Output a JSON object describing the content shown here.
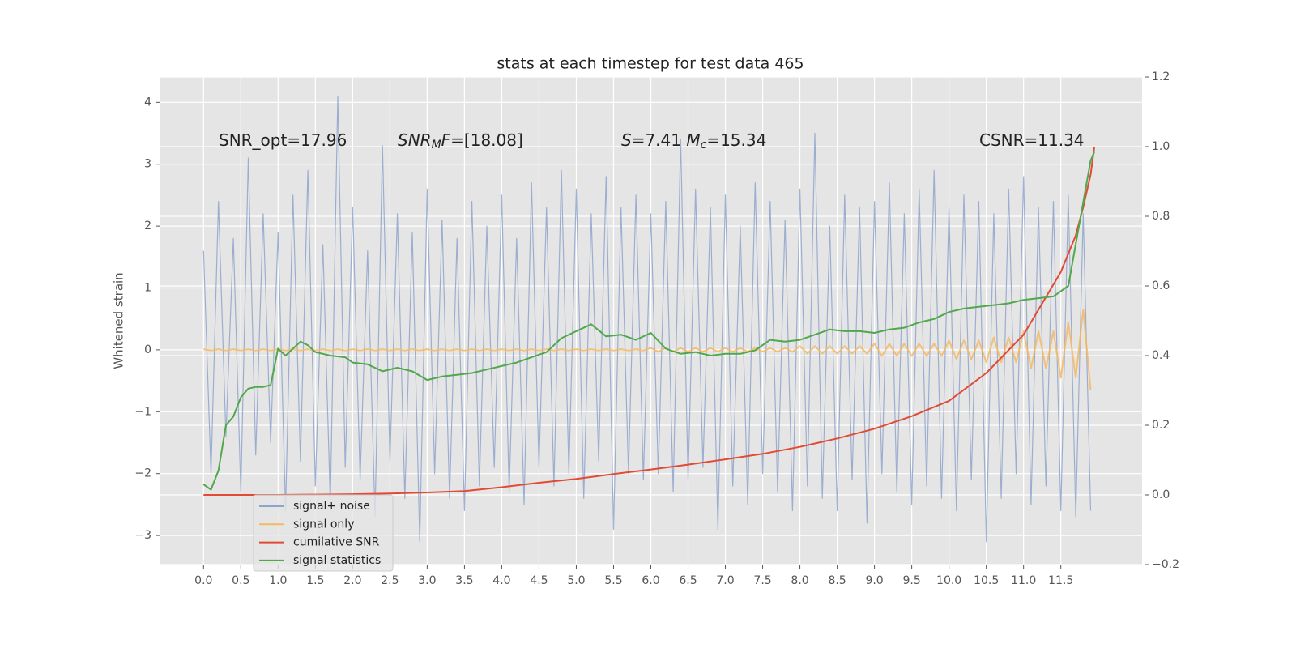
{
  "chart_data": {
    "type": "line",
    "title": "stats at each timestep for test data 465",
    "ylabel": "Whitened strain",
    "grid": true,
    "legend": "lower left",
    "annotations": [
      [
        {
          "text": "SNR_opt=17.96"
        }
      ],
      [
        {
          "text": "SNR",
          "italic": true
        },
        {
          "text": "M",
          "italic": true,
          "sub": true
        },
        {
          "text": "F",
          "italic": true
        },
        {
          "text": "=[18.08]"
        }
      ],
      [
        {
          "text": "S",
          "italic": true
        },
        {
          "text": "=7.41  "
        },
        {
          "text": "M",
          "italic": true
        },
        {
          "text": "c",
          "italic": true,
          "sub": true
        },
        {
          "text": "=15.34"
        }
      ],
      [
        {
          "text": "CSNR=11.34"
        }
      ]
    ],
    "xlim": [
      -0.59,
      12.59
    ],
    "ylim": [
      -3.47,
      4.41
    ],
    "y2lim": [
      -0.2,
      1.2
    ],
    "xticks": [
      {
        "value": 0,
        "label": "0.0"
      },
      0.5,
      {
        "value": 1,
        "label": "1.0"
      },
      1.5,
      {
        "value": 2,
        "label": "2.0"
      },
      2.5,
      {
        "value": 3,
        "label": "3.0"
      },
      3.5,
      {
        "value": 4,
        "label": "4.0"
      },
      4.5,
      {
        "value": 5,
        "label": "5.0"
      },
      5.5,
      {
        "value": 6,
        "label": "6.0"
      },
      6.5,
      {
        "value": 7,
        "label": "7.0"
      },
      7.5,
      {
        "value": 8,
        "label": "8.0"
      },
      8.5,
      {
        "value": 9,
        "label": "9.0"
      },
      9.5,
      {
        "value": 10,
        "label": "10.0"
      },
      10.5,
      {
        "value": 11,
        "label": "11.0"
      },
      11.5
    ],
    "yticks": [
      {
        "value": -3,
        "label": "−3"
      },
      {
        "value": -2,
        "label": "−2"
      },
      {
        "value": -1,
        "label": "−1"
      },
      0,
      1,
      2,
      3,
      4
    ],
    "y2ticks": [
      {
        "value": -0.2,
        "label": "−0.2"
      },
      {
        "value": 0,
        "label": "0.0"
      },
      0.2,
      0.4,
      0.6,
      0.8,
      {
        "value": 1,
        "label": "1.0"
      },
      1.2
    ],
    "x": [
      0,
      0.1,
      0.2,
      0.3,
      0.4,
      0.5,
      0.6,
      0.7,
      0.8,
      0.9,
      1,
      1.1,
      1.2,
      1.3,
      1.4,
      1.5,
      1.6,
      1.7,
      1.8,
      1.9,
      2,
      2.1,
      2.2,
      2.3,
      2.4,
      2.5,
      2.6,
      2.7,
      2.8,
      2.9,
      3,
      3.1,
      3.2,
      3.3,
      3.4,
      3.5,
      3.6,
      3.7,
      3.8,
      3.9,
      4,
      4.1,
      4.2,
      4.3,
      4.4,
      4.5,
      4.6,
      4.7,
      4.8,
      4.9,
      5,
      5.1,
      5.2,
      5.3,
      5.4,
      5.5,
      5.6,
      5.7,
      5.8,
      5.9,
      6,
      6.1,
      6.2,
      6.3,
      6.4,
      6.5,
      6.6,
      6.7,
      6.8,
      6.9,
      7,
      7.1,
      7.2,
      7.3,
      7.4,
      7.5,
      7.6,
      7.7,
      7.8,
      7.9,
      8,
      8.1,
      8.2,
      8.3,
      8.4,
      8.5,
      8.6,
      8.7,
      8.8,
      8.9,
      9,
      9.1,
      9.2,
      9.3,
      9.4,
      9.5,
      9.6,
      9.7,
      9.8,
      9.9,
      10,
      10.1,
      10.2,
      10.3,
      10.4,
      10.5,
      10.6,
      10.7,
      10.8,
      10.9,
      11,
      11.1,
      11.2,
      11.3,
      11.4,
      11.5,
      11.6,
      11.7,
      11.8,
      11.9
    ],
    "series": [
      {
        "name": "signal+ noise",
        "color": "#8fa4cc",
        "values": [
          1.6,
          -2.0,
          2.4,
          -1.4,
          1.8,
          -2.3,
          3.1,
          -1.7,
          2.2,
          -1.5,
          1.9,
          -2.6,
          2.5,
          -1.8,
          2.9,
          -2.2,
          1.7,
          -2.5,
          4.1,
          -1.9,
          2.3,
          -2.1,
          1.6,
          -2.7,
          3.3,
          -1.8,
          2.2,
          -2.4,
          1.9,
          -3.1,
          2.6,
          -2.0,
          2.1,
          -2.4,
          1.8,
          -2.6,
          2.4,
          -2.2,
          2.0,
          -1.9,
          2.5,
          -2.3,
          1.8,
          -2.5,
          2.7,
          -1.9,
          2.3,
          -2.2,
          2.9,
          -2.0,
          2.6,
          -2.4,
          2.2,
          -1.8,
          2.8,
          -2.9,
          2.3,
          -2.0,
          2.5,
          -2.1,
          2.2,
          -2.0,
          2.4,
          -2.3,
          3.4,
          -2.1,
          2.6,
          -1.9,
          2.3,
          -2.9,
          2.5,
          -2.2,
          2.0,
          -2.5,
          2.7,
          -2.0,
          2.4,
          -2.3,
          2.1,
          -2.6,
          2.6,
          -2.2,
          3.5,
          -2.4,
          2.0,
          -2.6,
          2.5,
          -2.1,
          2.3,
          -2.8,
          2.4,
          -2.0,
          2.7,
          -2.3,
          2.2,
          -2.5,
          2.6,
          -2.2,
          2.9,
          -2.4,
          2.3,
          -2.6,
          2.5,
          -2.1,
          2.4,
          -3.1,
          2.2,
          -2.4,
          2.6,
          -2.0,
          2.8,
          -2.5,
          2.3,
          -2.2,
          2.4,
          -2.6,
          2.5,
          -2.7,
          2.2,
          -2.6
        ]
      },
      {
        "name": "signal only",
        "color": "#f5b961",
        "values": [
          0.01,
          -0.01,
          0.01,
          -0.01,
          0.01,
          -0.01,
          0.01,
          -0.01,
          0.01,
          -0.01,
          0.01,
          -0.01,
          0.01,
          -0.01,
          0.01,
          -0.01,
          0.01,
          -0.01,
          0.01,
          -0.01,
          0.01,
          -0.01,
          0.01,
          -0.01,
          0.01,
          -0.01,
          0.01,
          -0.01,
          0.01,
          -0.01,
          0.01,
          -0.01,
          0.01,
          -0.01,
          0.01,
          -0.01,
          0.01,
          -0.01,
          0.01,
          -0.01,
          0.01,
          -0.01,
          0.01,
          -0.01,
          0.01,
          -0.01,
          0.01,
          -0.01,
          0.01,
          -0.01,
          0.01,
          -0.01,
          0.01,
          -0.01,
          0.01,
          -0.01,
          0.01,
          -0.01,
          0.01,
          -0.01,
          0.03,
          -0.03,
          0.03,
          -0.03,
          0.03,
          -0.03,
          0.03,
          -0.03,
          0.03,
          -0.03,
          0.03,
          -0.03,
          0.03,
          -0.03,
          0.03,
          -0.03,
          0.03,
          -0.03,
          0.03,
          -0.03,
          0.06,
          -0.06,
          0.06,
          -0.06,
          0.06,
          -0.06,
          0.06,
          -0.06,
          0.06,
          -0.06,
          0.1,
          -0.1,
          0.1,
          -0.1,
          0.1,
          -0.1,
          0.1,
          -0.1,
          0.1,
          -0.1,
          0.15,
          -0.15,
          0.15,
          -0.15,
          0.15,
          -0.2,
          0.2,
          -0.2,
          0.2,
          -0.2,
          0.3,
          -0.3,
          0.3,
          -0.3,
          0.3,
          -0.45,
          0.45,
          -0.45,
          0.65,
          -0.65
        ]
      },
      {
        "name": "cumilative SNR",
        "color": "#e24a33",
        "axis": "y2",
        "x": [
          0,
          0.5,
          1,
          1.5,
          2,
          2.5,
          3,
          3.5,
          4,
          4.5,
          5,
          5.5,
          6,
          6.5,
          7,
          7.5,
          8,
          8.5,
          9,
          9.5,
          10,
          10.5,
          11,
          11.5,
          11.7,
          11.8,
          11.9,
          11.95
        ],
        "values": [
          0,
          0,
          0,
          0.001,
          0.002,
          0.004,
          0.007,
          0.011,
          0.022,
          0.035,
          0.046,
          0.06,
          0.073,
          0.087,
          0.102,
          0.118,
          0.138,
          0.162,
          0.19,
          0.226,
          0.27,
          0.35,
          0.46,
          0.64,
          0.745,
          0.826,
          0.92,
          1.0
        ]
      },
      {
        "name": "signal statistics",
        "color": "#50a84a",
        "axis": "y2",
        "x": [
          0,
          0.1,
          0.2,
          0.3,
          0.4,
          0.5,
          0.6,
          0.7,
          0.8,
          0.9,
          1,
          1.1,
          1.2,
          1.3,
          1.4,
          1.5,
          1.7,
          1.9,
          2,
          2.2,
          2.4,
          2.6,
          2.8,
          3,
          3.2,
          3.4,
          3.6,
          3.8,
          4,
          4.2,
          4.4,
          4.6,
          4.8,
          5,
          5.2,
          5.4,
          5.6,
          5.8,
          6,
          6.2,
          6.4,
          6.6,
          6.8,
          7,
          7.2,
          7.4,
          7.6,
          7.8,
          8,
          8.2,
          8.4,
          8.6,
          8.8,
          9,
          9.2,
          9.4,
          9.6,
          9.8,
          10,
          10.2,
          10.4,
          10.6,
          10.8,
          11,
          11.2,
          11.4,
          11.6,
          11.7,
          11.8,
          11.9,
          11.95
        ],
        "values": [
          0.03,
          0.015,
          0.07,
          0.2,
          0.225,
          0.28,
          0.305,
          0.31,
          0.31,
          0.315,
          0.42,
          0.4,
          0.42,
          0.44,
          0.43,
          0.41,
          0.4,
          0.395,
          0.38,
          0.375,
          0.355,
          0.365,
          0.355,
          0.33,
          0.34,
          0.345,
          0.35,
          0.36,
          0.37,
          0.38,
          0.395,
          0.41,
          0.45,
          0.47,
          0.49,
          0.455,
          0.46,
          0.445,
          0.465,
          0.42,
          0.405,
          0.41,
          0.4,
          0.405,
          0.405,
          0.415,
          0.445,
          0.44,
          0.445,
          0.46,
          0.475,
          0.47,
          0.47,
          0.465,
          0.475,
          0.48,
          0.495,
          0.505,
          0.525,
          0.535,
          0.54,
          0.545,
          0.55,
          0.56,
          0.565,
          0.57,
          0.6,
          0.72,
          0.84,
          0.96,
          0.985
        ]
      }
    ]
  }
}
